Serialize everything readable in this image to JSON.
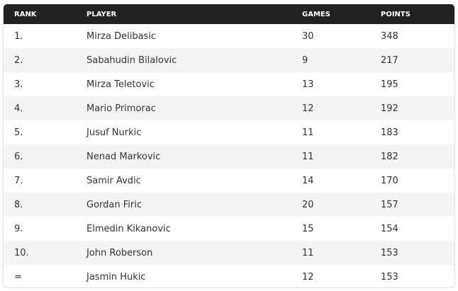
{
  "table": {
    "header": [
      "RANK",
      "PLAYER",
      "GAMES",
      "POINTS"
    ],
    "rows": [
      [
        "1.",
        "Mirza Delibasic",
        30,
        348
      ],
      [
        "2.",
        "Sabahudin Bilalovic",
        9,
        217
      ],
      [
        "3.",
        "Mirza Teletovic",
        13,
        195
      ],
      [
        "4.",
        "Mario Primorac",
        12,
        192
      ],
      [
        "5.",
        "Jusuf Nurkic",
        11,
        183
      ],
      [
        "6.",
        "Nenad Markovic",
        11,
        182
      ],
      [
        "7.",
        "Samir Avdic",
        14,
        170
      ],
      [
        "8.",
        "Gordan Firic",
        20,
        157
      ],
      [
        "9.",
        "Elmedin Kikanovic",
        15,
        154
      ],
      [
        "10.",
        "John Roberson",
        11,
        153
      ],
      [
        "=",
        "Jasmin Hukic",
        12,
        153
      ]
    ]
  }
}
